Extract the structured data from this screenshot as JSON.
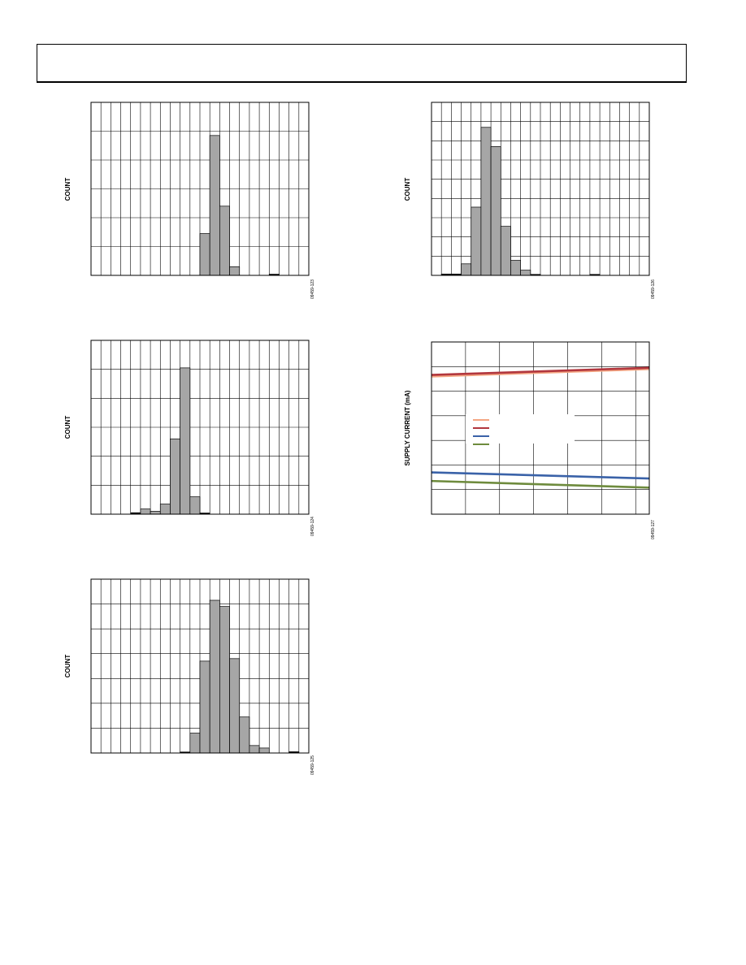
{
  "page": {
    "header_title": ""
  },
  "chart_data": [
    {
      "id": "chart-1",
      "type": "bar",
      "title": "",
      "ylabel": "COUNT",
      "figure_id": "09459-123",
      "bin_count": 22,
      "ylim": [
        0,
        6
      ],
      "grid": true,
      "bar_fill": "#a6a6a6",
      "values": [
        0,
        0,
        0,
        0,
        0,
        0,
        0,
        0,
        0,
        0,
        0,
        1.45,
        4.85,
        2.4,
        0.3,
        0,
        0,
        0,
        0.04,
        0,
        0,
        0
      ]
    },
    {
      "id": "chart-2",
      "type": "bar",
      "title": "",
      "ylabel": "COUNT",
      "figure_id": "09459-124",
      "bin_count": 22,
      "ylim": [
        0,
        6
      ],
      "grid": true,
      "bar_fill": "#a6a6a6",
      "values": [
        0,
        0,
        0,
        0,
        0.05,
        0.18,
        0.1,
        0.35,
        2.6,
        5.05,
        0.6,
        0.04,
        0,
        0,
        0,
        0,
        0,
        0,
        0,
        0,
        0,
        0
      ]
    },
    {
      "id": "chart-3",
      "type": "bar",
      "title": "",
      "ylabel": "COUNT",
      "figure_id": "09459-125",
      "bin_count": 22,
      "ylim": [
        0,
        7
      ],
      "grid": true,
      "bar_fill": "#a6a6a6",
      "values": [
        0,
        0,
        0,
        0,
        0,
        0,
        0,
        0,
        0,
        0.04,
        0.8,
        3.7,
        6.15,
        5.9,
        3.8,
        1.45,
        0.3,
        0.2,
        0,
        0,
        0.05,
        0
      ]
    },
    {
      "id": "chart-4",
      "type": "bar",
      "title": "",
      "ylabel": "COUNT",
      "figure_id": "09459-126",
      "bin_count": 22,
      "ylim": [
        0,
        9
      ],
      "grid": true,
      "bar_fill": "#a6a6a6",
      "values": [
        0,
        0.07,
        0.07,
        0.6,
        3.55,
        7.7,
        6.7,
        2.55,
        0.78,
        0.27,
        0.05,
        0,
        0,
        0,
        0,
        0,
        0.05,
        0,
        0,
        0,
        0,
        0
      ]
    },
    {
      "id": "chart-5",
      "type": "line",
      "title": "",
      "ylabel": "SUPPLY CURRENT (mA)",
      "figure_id": "09459-127",
      "grid": true,
      "x_divisions": 6.4,
      "y_divisions": 7,
      "ylim": [
        0,
        7
      ],
      "legend_position": "center-left",
      "series": [
        {
          "color": "#f4a582",
          "x": [
            0,
            6.4
          ],
          "y": [
            5.6,
            5.9
          ]
        },
        {
          "color": "#b2373e",
          "x": [
            0,
            6.4
          ],
          "y": [
            5.66,
            5.95
          ]
        },
        {
          "color": "#3a62a8",
          "x": [
            0,
            6.4
          ],
          "y": [
            1.7,
            1.45
          ]
        },
        {
          "color": "#6e8b3d",
          "x": [
            0,
            6.4
          ],
          "y": [
            1.35,
            1.08
          ]
        }
      ]
    }
  ]
}
